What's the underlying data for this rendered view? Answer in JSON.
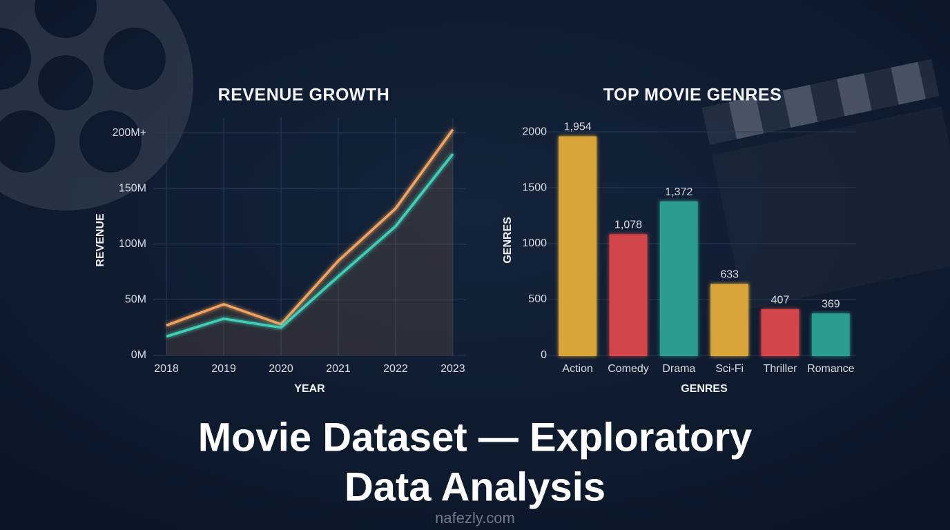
{
  "chart_data": [
    {
      "type": "line",
      "title": "REVENUE GROWTH",
      "x_label": "YEAR",
      "y_label": "REVENUE",
      "x": [
        2018,
        2019,
        2020,
        2021,
        2022,
        2023
      ],
      "xlim": [
        2017.77,
        2023.23
      ],
      "xticks": [
        2018,
        2019,
        2020,
        2021,
        2022,
        2023
      ],
      "ylim": [
        0,
        214
      ],
      "yticks": [
        {
          "value": 0,
          "label": "0M"
        },
        {
          "value": 50,
          "label": "50M"
        },
        {
          "value": 100,
          "label": "100M"
        },
        {
          "value": 150,
          "label": "150M"
        },
        {
          "value": 200,
          "label": "200M+"
        }
      ],
      "grid": true,
      "series": [
        {
          "color": "#f2a35e",
          "values": [
            27,
            46,
            28,
            85,
            132,
            203
          ]
        },
        {
          "color": "#3fd0b8",
          "values": [
            17,
            33,
            25,
            71,
            116,
            181
          ]
        }
      ]
    },
    {
      "type": "bar",
      "title": "TOP MOVIE GENRES",
      "x_label": "GENRES",
      "y_label": "GENRES",
      "categories": [
        "Action",
        "Comedy",
        "Drama",
        "Sci-Fi",
        "Thriller",
        "Romance"
      ],
      "values": [
        1954,
        1078,
        1372,
        633,
        407,
        369
      ],
      "value_labels": [
        "1,954",
        "1,078",
        "1,372",
        "633",
        "407",
        "369"
      ],
      "colors": [
        "#d9a53a",
        "#d2444a",
        "#2a9d8f",
        "#d9a53a",
        "#d2444a",
        "#2a9d8f"
      ],
      "ylim": [
        0,
        2130
      ],
      "yticks": [
        0,
        500,
        1000,
        1500,
        2000
      ],
      "grid": true
    }
  ],
  "main_title": [
    "Movie Dataset — Exploratory",
    "Data Analysis"
  ],
  "watermark": "nafezly.com"
}
